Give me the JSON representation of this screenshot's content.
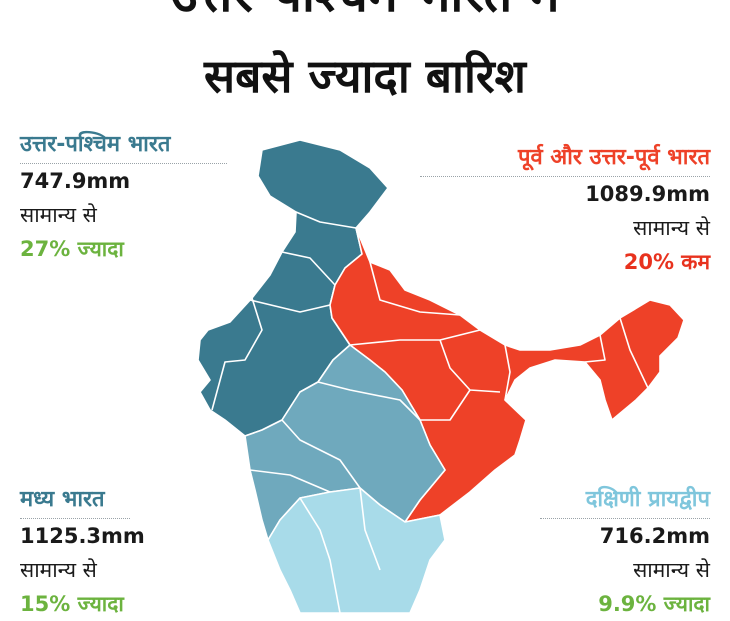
{
  "title": {
    "line1": "उत्तर-पश्चिम भारत में",
    "line2": "सबसे ज्यादा बारिश"
  },
  "regions": {
    "northwest": {
      "name": "उत्तर-पश्चिम भारत",
      "rainfall": "747.9mm",
      "normal_text": "सामान्य से",
      "delta": "27% ज्यादा"
    },
    "northeast": {
      "name": "पूर्व और उत्तर-पूर्व भारत",
      "rainfall": "1089.9mm",
      "normal_text": "सामान्य से",
      "delta": "20% कम"
    },
    "central": {
      "name": "मध्य भारत",
      "rainfall": "1125.3mm",
      "normal_text": "सामान्य से",
      "delta": "15% ज्यादा"
    },
    "south": {
      "name": "दक्षिणी प्रायद्वीप",
      "rainfall": "716.2mm",
      "normal_text": "सामान्य से",
      "delta": "9.9% ज्यादा"
    }
  },
  "colors": {
    "northwest": "#3a7a8f",
    "northeast": "#ee4128",
    "central": "#6fa9bd",
    "south": "#a8dbe9",
    "excess": "#6cb33f",
    "deficit": "#e8321e",
    "state_border": "#ffffff"
  },
  "icons": {
    "map": "india-map-icon"
  }
}
